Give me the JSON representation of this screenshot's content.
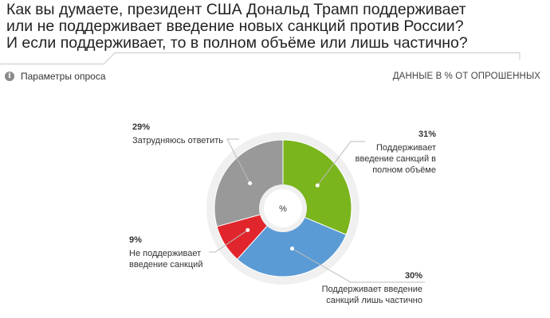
{
  "header": {
    "title_lines": [
      "Как вы думаете, президент США Дональд Трамп поддерживает",
      "или не поддерживает введение новых санкций против России?",
      "И если поддерживает, то в полном объёме или лишь частично?"
    ],
    "params_label": "Параметры опроса",
    "params_icon": "info-icon",
    "units_label": "ДАННЫЕ В % ОТ ОПРОШЕННЫХ"
  },
  "chart_data": {
    "type": "pie",
    "center_label": "%",
    "slices": [
      {
        "label": "Поддерживает введение санкций в полном объёме",
        "label_lines": [
          "Поддерживает",
          "введение санкций в",
          "полном объёме"
        ],
        "value": 31,
        "value_label": "31%",
        "color": "#7ab51d"
      },
      {
        "label": "Поддерживает введение санкций лишь частично",
        "label_lines": [
          "Поддерживает введение",
          "санкций лишь частично"
        ],
        "value": 30,
        "value_label": "30%",
        "color": "#5b9bd5"
      },
      {
        "label": "Не поддерживает введение санкций",
        "label_lines": [
          "Не поддерживает",
          "введение санкций"
        ],
        "value": 9,
        "value_label": "9%",
        "color": "#e0262c"
      },
      {
        "label": "Затрудняюсь ответить",
        "label_lines": [
          "Затрудняюсь ответить"
        ],
        "value": 29,
        "value_label": "29%",
        "color": "#999999"
      }
    ]
  }
}
